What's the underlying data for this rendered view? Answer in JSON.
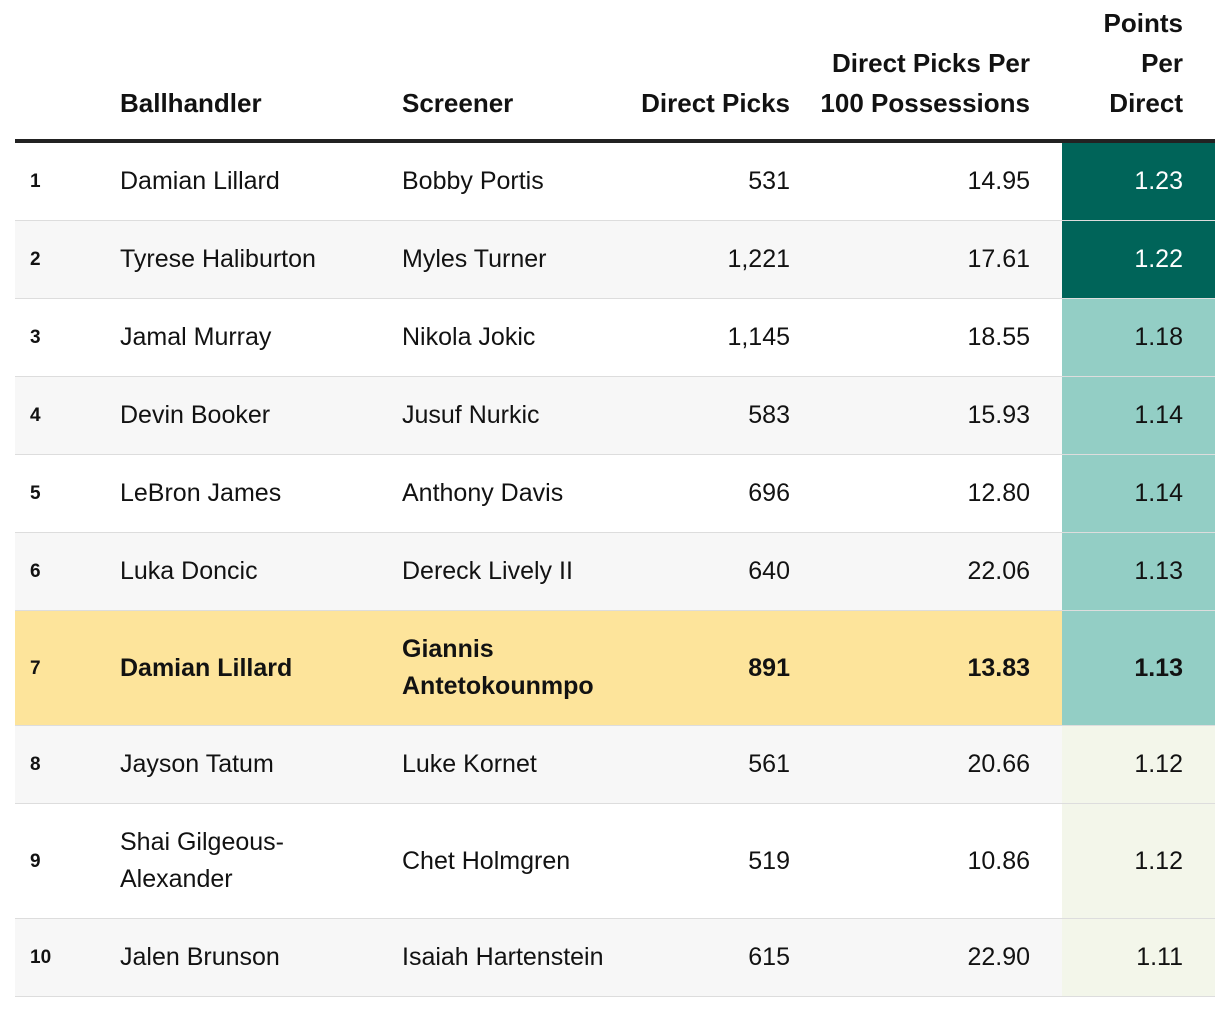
{
  "table": {
    "headers": [
      "",
      "Ballhandler",
      "Screener",
      "Direct Picks",
      "Direct Picks Per 100 Possessions",
      "Points Per Direct"
    ],
    "rows": [
      {
        "cells": [
          "1",
          "Damian Lillard",
          "Bobby Portis",
          "531",
          "14.95",
          "1.23"
        ],
        "highlight": false,
        "ppd_fill": "#006459",
        "ppd_text_color": "#ffffff"
      },
      {
        "cells": [
          "2",
          "Tyrese Haliburton",
          "Myles Turner",
          "1,221",
          "17.61",
          "1.22"
        ],
        "highlight": false,
        "ppd_fill": "#006459",
        "ppd_text_color": "#ffffff"
      },
      {
        "cells": [
          "3",
          "Jamal Murray",
          "Nikola Jokic",
          "1,145",
          "18.55",
          "1.18"
        ],
        "highlight": false,
        "ppd_fill": "#93cec5",
        "ppd_text_color": "#121212"
      },
      {
        "cells": [
          "4",
          "Devin Booker",
          "Jusuf Nurkic",
          "583",
          "15.93",
          "1.14"
        ],
        "highlight": false,
        "ppd_fill": "#93cec5",
        "ppd_text_color": "#121212"
      },
      {
        "cells": [
          "5",
          "LeBron James",
          "Anthony Davis",
          "696",
          "12.80",
          "1.14"
        ],
        "highlight": false,
        "ppd_fill": "#93cec5",
        "ppd_text_color": "#121212"
      },
      {
        "cells": [
          "6",
          "Luka Doncic",
          "Dereck Lively II",
          "640",
          "22.06",
          "1.13"
        ],
        "highlight": false,
        "ppd_fill": "#93cec5",
        "ppd_text_color": "#121212"
      },
      {
        "cells": [
          "7",
          "Damian Lillard",
          "Giannis Antetokounmpo",
          "891",
          "13.83",
          "1.13"
        ],
        "highlight": true,
        "ppd_fill": "#93cec5",
        "ppd_text_color": "#121212"
      },
      {
        "cells": [
          "8",
          "Jayson Tatum",
          "Luke Kornet",
          "561",
          "20.66",
          "1.12"
        ],
        "highlight": false,
        "ppd_fill": "#f3f6ea",
        "ppd_text_color": "#121212"
      },
      {
        "cells": [
          "9",
          "Shai Gilgeous-Alexander",
          "Chet Holmgren",
          "519",
          "10.86",
          "1.12"
        ],
        "highlight": false,
        "ppd_fill": "#f3f6ea",
        "ppd_text_color": "#121212"
      },
      {
        "cells": [
          "10",
          "Jalen Brunson",
          "Isaiah Hartenstein",
          "615",
          "22.90",
          "1.11"
        ],
        "highlight": false,
        "ppd_fill": "#f3f6ea",
        "ppd_text_color": "#121212"
      }
    ]
  }
}
